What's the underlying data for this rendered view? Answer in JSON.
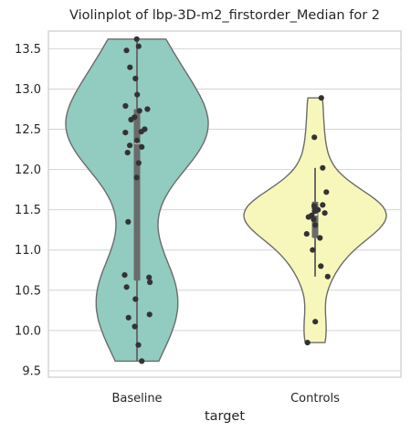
{
  "chart_data": {
    "type": "violin",
    "title": "Violinplot of lbp-3D-m2_firstorder_Median for 2",
    "xlabel": "target",
    "ylabel": "",
    "ylim": [
      9.42,
      13.72
    ],
    "yticks": [
      9.5,
      10.0,
      10.5,
      11.0,
      11.5,
      12.0,
      12.5,
      13.0,
      13.5
    ],
    "ytick_labels": [
      "9.5",
      "10.0",
      "10.5",
      "11.0",
      "11.5",
      "12.0",
      "12.5",
      "13.0",
      "13.5"
    ],
    "grid": "horizontal",
    "categories": [
      "Baseline",
      "Controls"
    ],
    "colors": {
      "Baseline": "#92cbc0",
      "Controls": "#f8f7bb",
      "outline": "#6b6b6b",
      "points": "#333333",
      "box": "#6b6b6b",
      "grid": "#d4d4d4"
    },
    "groups": [
      {
        "name": "Baseline",
        "points": [
          13.62,
          13.53,
          13.48,
          13.27,
          13.13,
          12.93,
          12.79,
          12.75,
          12.73,
          12.65,
          12.62,
          12.5,
          12.47,
          12.46,
          12.36,
          12.3,
          12.28,
          12.21,
          12.08,
          11.9,
          11.35,
          10.69,
          10.66,
          10.6,
          10.54,
          10.39,
          10.2,
          10.16,
          10.05,
          9.82,
          9.62
        ],
        "quartiles": [
          10.62,
          12.33,
          12.75
        ],
        "whisker": [
          9.62,
          13.62
        ],
        "violin_extent": [
          9.62,
          13.62
        ]
      },
      {
        "name": "Controls",
        "points": [
          12.89,
          12.4,
          12.02,
          11.72,
          11.56,
          11.55,
          11.53,
          11.5,
          11.48,
          11.46,
          11.43,
          11.41,
          11.38,
          11.31,
          11.2,
          11.15,
          11.0,
          10.8,
          10.67,
          10.11,
          9.85
        ],
        "quartiles": [
          11.15,
          11.44,
          11.6
        ],
        "whisker": [
          10.67,
          12.02
        ],
        "violin_extent": [
          9.85,
          12.89
        ]
      }
    ]
  }
}
